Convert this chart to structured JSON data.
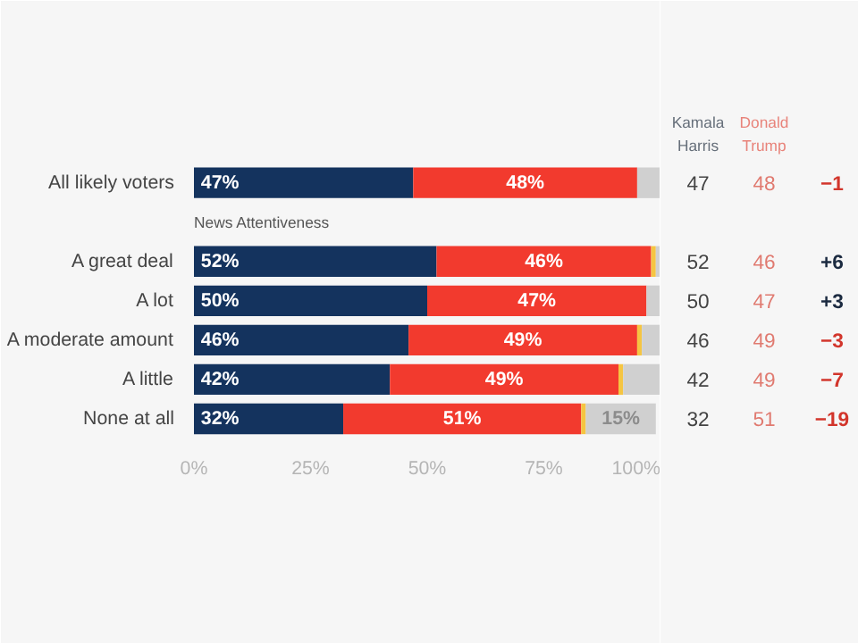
{
  "chart_data": {
    "type": "bar",
    "orientation": "horizontal",
    "stacked": true,
    "categories": [
      "All likely voters",
      null,
      "A great deal",
      "A lot",
      "A moderate amount",
      "A little",
      "None at all"
    ],
    "series": [
      {
        "name": "Kamala Harris",
        "color": "#14335e",
        "values": [
          47,
          null,
          52,
          50,
          46,
          42,
          32
        ],
        "value_labels": [
          "47%",
          null,
          "52%",
          "50%",
          "46%",
          "42%",
          "32%"
        ]
      },
      {
        "name": "Donald Trump",
        "color": "#f23a2e",
        "values": [
          48,
          null,
          46,
          47,
          49,
          49,
          51
        ],
        "value_labels": [
          "48%",
          null,
          "46%",
          "47%",
          "49%",
          "49%",
          "51%"
        ]
      },
      {
        "color": "#f5c542",
        "values": [
          0,
          null,
          1,
          0,
          1,
          1,
          1
        ]
      },
      {
        "color": "#d0d0d0",
        "values": [
          5,
          null,
          1,
          3,
          4,
          8,
          15
        ],
        "value_labels": [
          null,
          null,
          null,
          null,
          null,
          null,
          "15%"
        ]
      }
    ],
    "xlim": [
      0,
      100
    ],
    "xticks": [
      {
        "value": 0,
        "label": "0%"
      },
      {
        "value": 25,
        "label": "25%"
      },
      {
        "value": 50,
        "label": "50%"
      },
      {
        "value": 75,
        "label": "75%"
      },
      {
        "value": 100,
        "label": "100%"
      }
    ],
    "annotations": [
      "News Attentiveness",
      "47",
      "52",
      "50",
      "46",
      "42",
      "32",
      "48",
      "46",
      "47",
      "49",
      "49",
      "51",
      "−1",
      "+6",
      "+3",
      "−3",
      "−7",
      "−19"
    ]
  }
}
